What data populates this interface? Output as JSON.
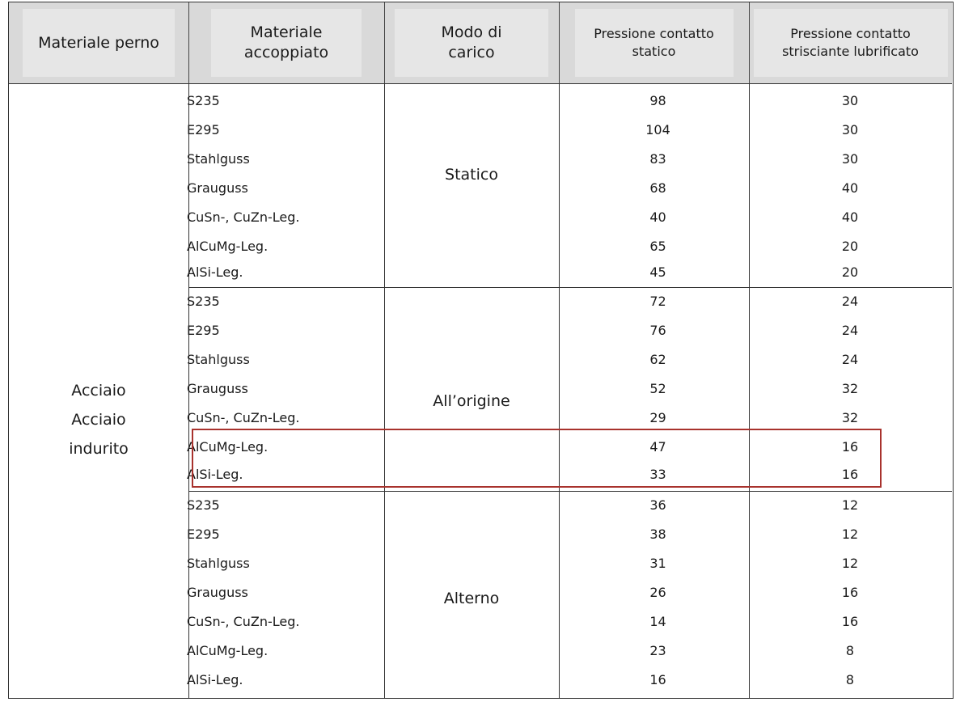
{
  "headers": {
    "perno": "Materiale perno",
    "accoppiato": "Materiale accoppiato",
    "modo": "Modo di carico",
    "statico": "Pressione contatto statico",
    "lubrificato": "Pressione contatto strisciante lubrificato"
  },
  "perno_label": [
    "Acciaio",
    "Acciaio",
    "indurito"
  ],
  "groups": [
    {
      "modo": "Statico",
      "rows": [
        {
          "materiale": "S235",
          "statico": "98",
          "lubrificato": "30"
        },
        {
          "materiale": "E295",
          "statico": "104",
          "lubrificato": "30"
        },
        {
          "materiale": "Stahlguss",
          "statico": "83",
          "lubrificato": "30"
        },
        {
          "materiale": "Grauguss",
          "statico": "68",
          "lubrificato": "40"
        },
        {
          "materiale": "CuSn-, CuZn-Leg.",
          "statico": "40",
          "lubrificato": "40"
        },
        {
          "materiale": "AlCuMg-Leg.",
          "statico": "65",
          "lubrificato": "20"
        },
        {
          "materiale": "AlSi-Leg.",
          "statico": "45",
          "lubrificato": "20"
        }
      ]
    },
    {
      "modo": "All’origine",
      "rows": [
        {
          "materiale": "S235",
          "statico": "72",
          "lubrificato": "24"
        },
        {
          "materiale": "E295",
          "statico": "76",
          "lubrificato": "24"
        },
        {
          "materiale": "Stahlguss",
          "statico": "62",
          "lubrificato": "24"
        },
        {
          "materiale": "Grauguss",
          "statico": "52",
          "lubrificato": "32"
        },
        {
          "materiale": "CuSn-, CuZn-Leg.",
          "statico": "29",
          "lubrificato": "32"
        },
        {
          "materiale": "AlCuMg-Leg.",
          "statico": "47",
          "lubrificato": "16"
        },
        {
          "materiale": "AlSi-Leg.",
          "statico": "33",
          "lubrificato": "16"
        }
      ]
    },
    {
      "modo": "Alterno",
      "rows": [
        {
          "materiale": "S235",
          "statico": "36",
          "lubrificato": "12"
        },
        {
          "materiale": "E295",
          "statico": "38",
          "lubrificato": "12"
        },
        {
          "materiale": "Stahlguss",
          "statico": "31",
          "lubrificato": "12"
        },
        {
          "materiale": "Grauguss",
          "statico": "26",
          "lubrificato": "16"
        },
        {
          "materiale": "CuSn-, CuZn-Leg.",
          "statico": "14",
          "lubrificato": "16"
        },
        {
          "materiale": "AlCuMg-Leg.",
          "statico": "23",
          "lubrificato": "8"
        },
        {
          "materiale": "AlSi-Leg.",
          "statico": "16",
          "lubrificato": "8"
        }
      ]
    }
  ],
  "highlight_color": "#a8322d"
}
